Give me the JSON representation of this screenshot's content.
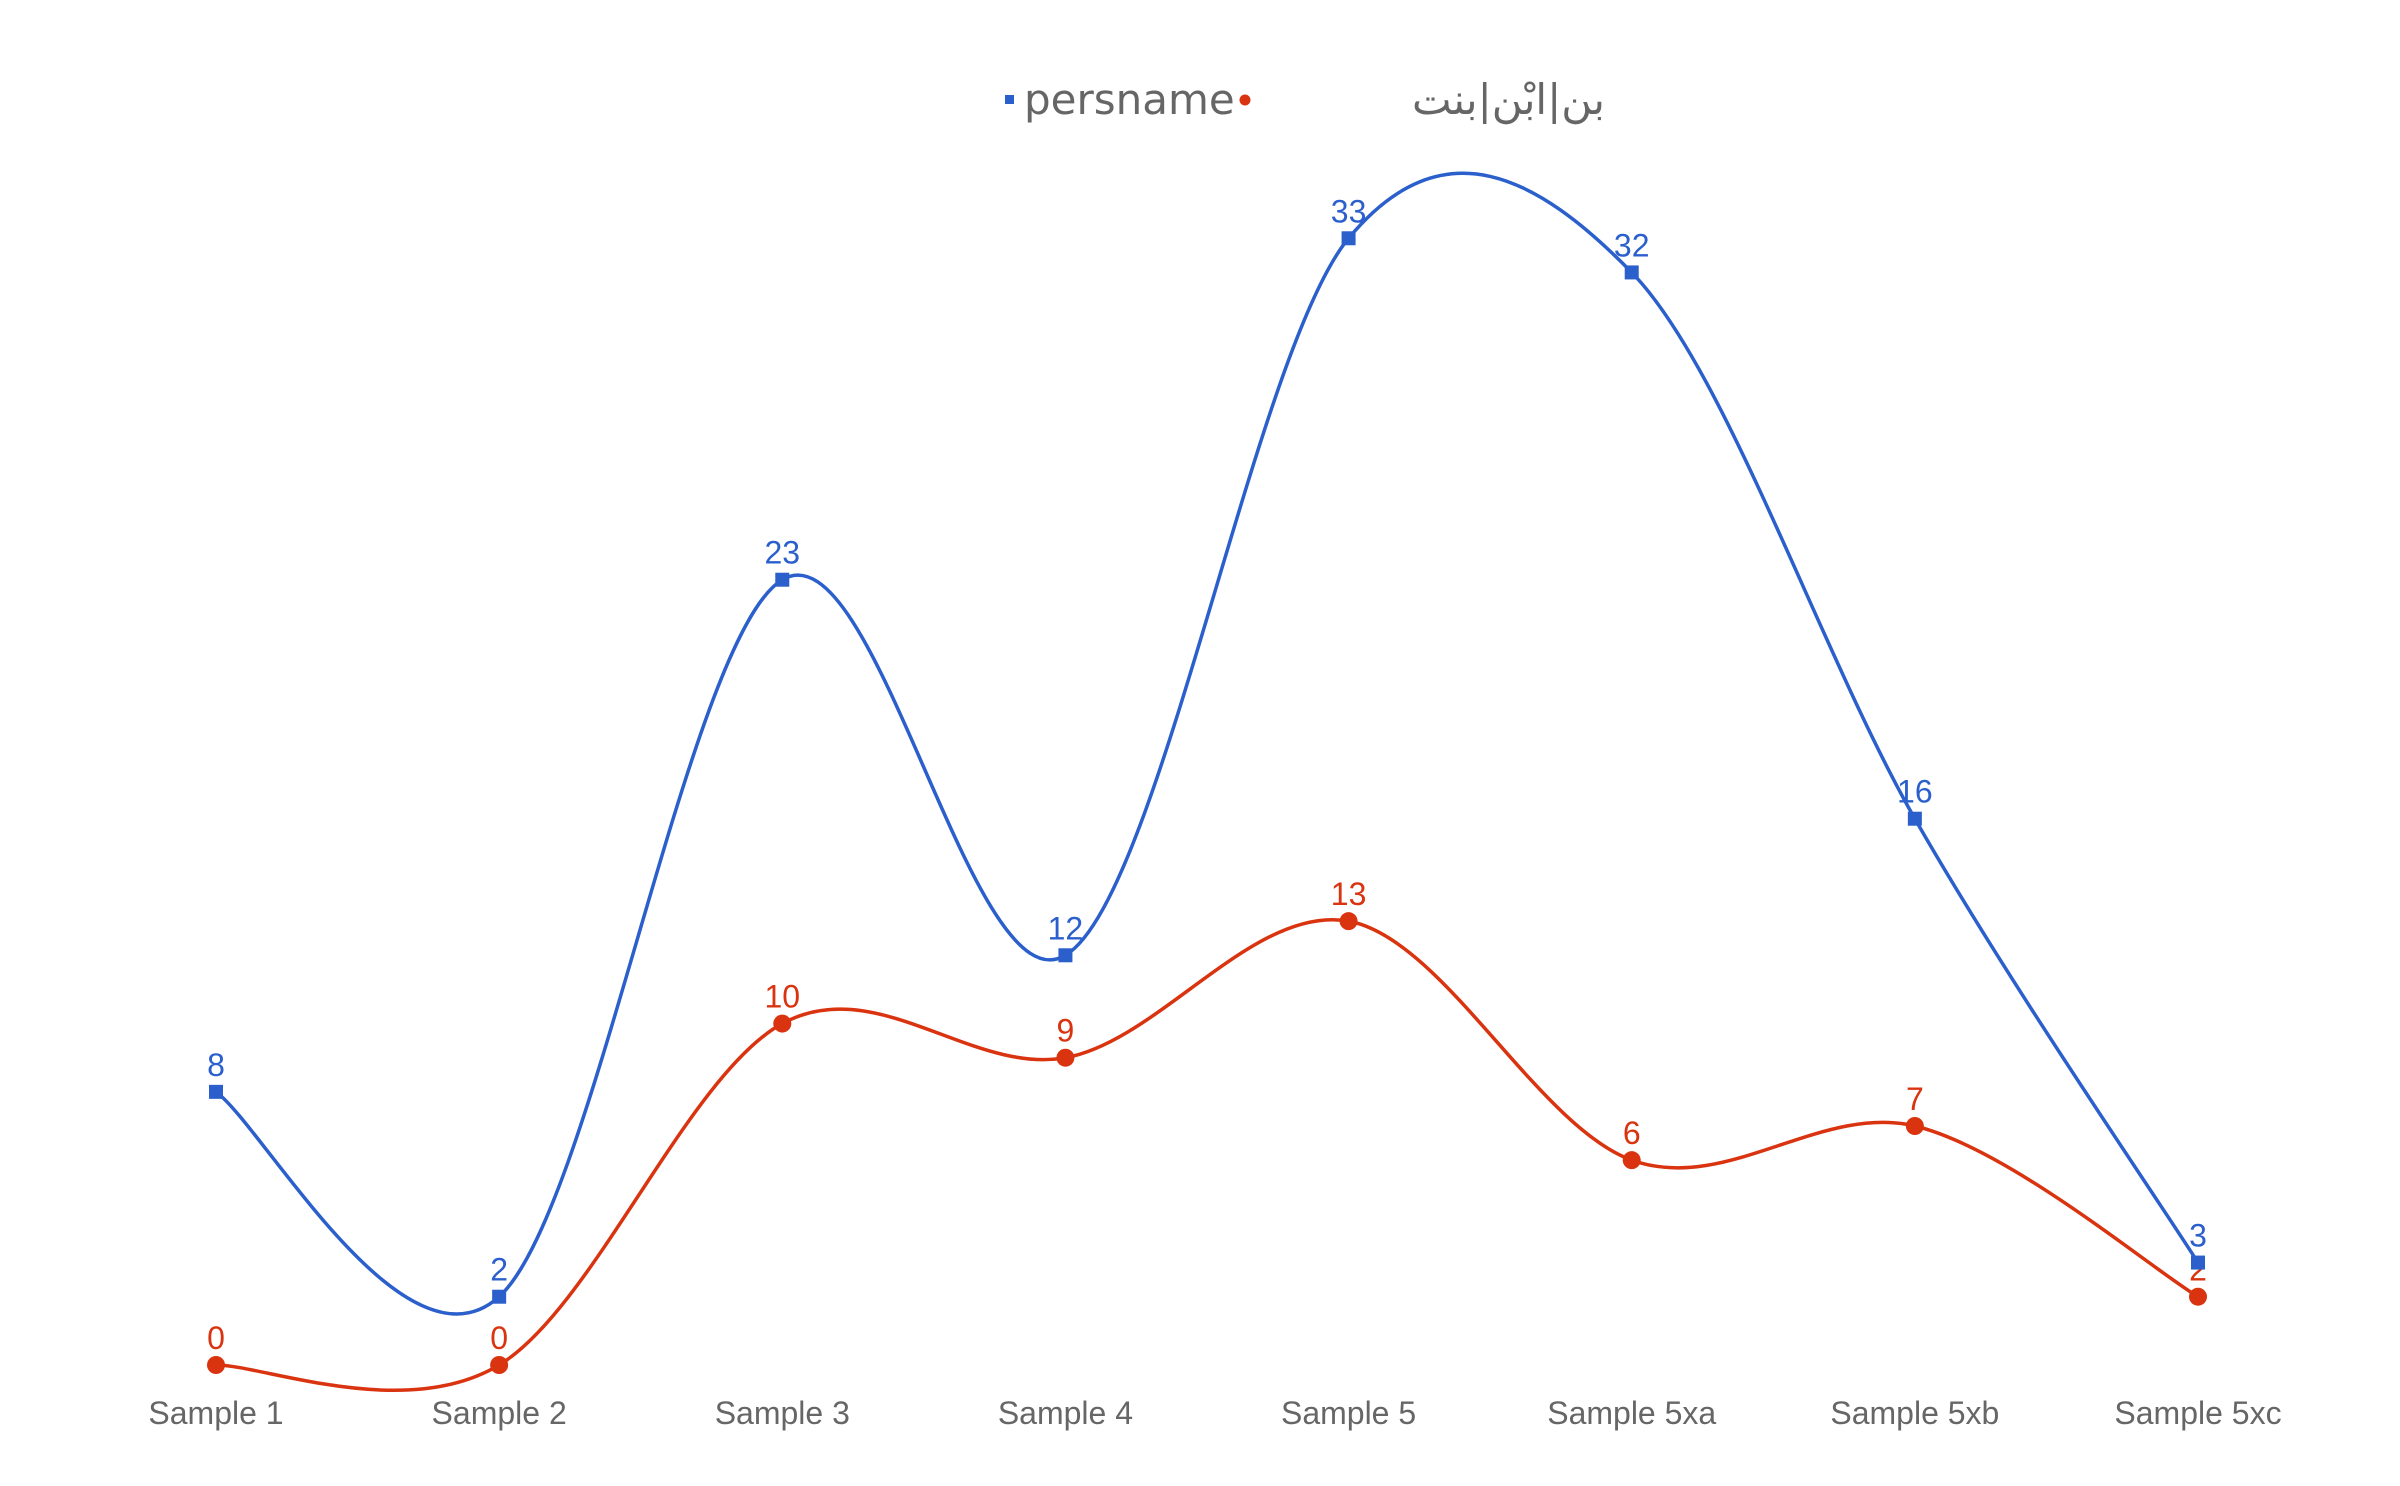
{
  "chart_data": {
    "type": "line",
    "categories": [
      "Sample 1",
      "Sample 2",
      "Sample 3",
      "Sample 4",
      "Sample 5",
      "Sample 5xa",
      "Sample 5xb",
      "Sample 5xc"
    ],
    "series": [
      {
        "name": "persname",
        "values": [
          8,
          2,
          23,
          12,
          33,
          32,
          16,
          3
        ],
        "color": "#2a5fcc",
        "marker": "square"
      },
      {
        "name": "بن|ابْن|بنت",
        "values": [
          0,
          0,
          10,
          9,
          13,
          6,
          7,
          2
        ],
        "color": "#d9330f",
        "marker": "circle"
      }
    ],
    "ylim": [
      0,
      35
    ],
    "smooth": true,
    "grid": false,
    "data_labels": true,
    "legend_position": "top-center"
  }
}
